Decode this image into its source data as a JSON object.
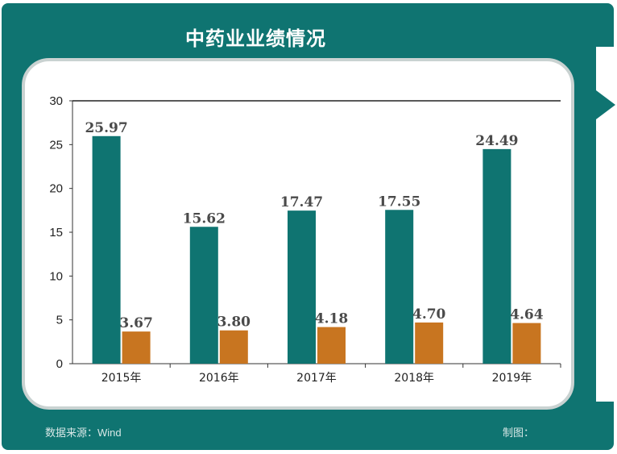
{
  "header": {
    "title": "中药业业绩情况"
  },
  "footer": {
    "source": "数据来源：Wind",
    "credit": "制图："
  },
  "colors": {
    "frame": "#0f7471",
    "series_a": "#0f7471",
    "series_b": "#c87520"
  },
  "chart_data": {
    "type": "bar",
    "title": "中药业业绩情况",
    "categories": [
      "2015年",
      "2016年",
      "2017年",
      "2018年",
      "2019年"
    ],
    "series": [
      {
        "values": [
          25.97,
          15.62,
          17.47,
          17.55,
          24.49
        ]
      },
      {
        "values": [
          3.67,
          3.8,
          4.18,
          4.7,
          4.64
        ]
      }
    ],
    "y_ticks": [
      0,
      5,
      10,
      15,
      20,
      25,
      30
    ],
    "ylim": [
      0,
      30
    ],
    "xlabel": "",
    "ylabel": "",
    "grid": false,
    "legend": "none"
  }
}
